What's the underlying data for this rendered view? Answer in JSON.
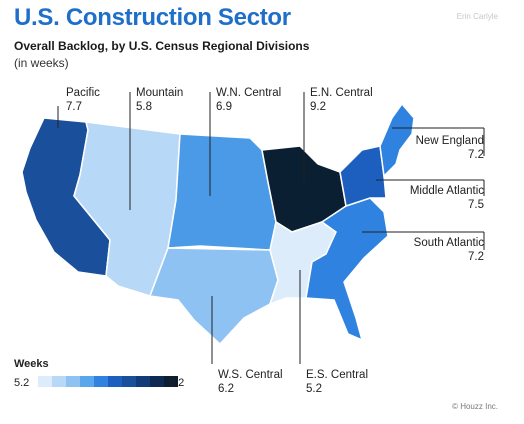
{
  "header": {
    "title": "U.S. Construction Sector",
    "credit": "Erin Carlyle",
    "subtitle": "Overall Backlog, by U.S. Census Regional Divisions",
    "unit_note": "(in weeks)"
  },
  "divisions": [
    {
      "id": "pacific",
      "name": "Pacific",
      "weeks": "7.7",
      "color": "#1a4f9c"
    },
    {
      "id": "mountain",
      "name": "Mountain",
      "weeks": "5.8",
      "color": "#b7d8f7"
    },
    {
      "id": "wn_central",
      "name": "W.N. Central",
      "weeks": "6.9",
      "color": "#4a9ae8"
    },
    {
      "id": "en_central",
      "name": "E.N. Central",
      "weeks": "9.2",
      "color": "#0b1f33"
    },
    {
      "id": "new_england",
      "name": "New England",
      "weeks": "7.2",
      "color": "#2f82e0"
    },
    {
      "id": "middle_atlantic",
      "name": "Middle Atlantic",
      "weeks": "7.5",
      "color": "#1d5fbf"
    },
    {
      "id": "south_atlantic",
      "name": "South Atlantic",
      "weeks": "7.2",
      "color": "#2f82e0"
    },
    {
      "id": "ws_central",
      "name": "W.S. Central",
      "weeks": "6.2",
      "color": "#8ec2f2"
    },
    {
      "id": "es_central",
      "name": "E.S. Central",
      "weeks": "5.2",
      "color": "#dcecfb"
    }
  ],
  "legend": {
    "title": "Weeks",
    "min": "5.2",
    "max": "9.2",
    "colors": [
      "#dcecfb",
      "#b7d8f7",
      "#8ec2f2",
      "#5aa6ec",
      "#2f82e0",
      "#1d5fbf",
      "#1a4f9c",
      "#123b77",
      "#0d2a52",
      "#0b1f33"
    ]
  },
  "footer": {
    "source": "© Houzz Inc."
  }
}
